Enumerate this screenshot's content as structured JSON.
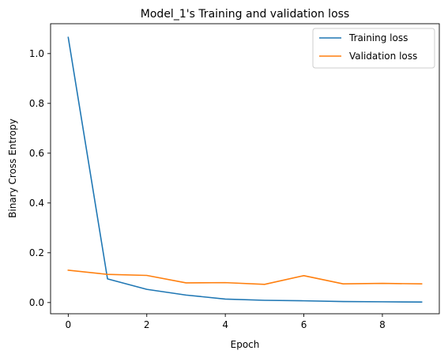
{
  "chart_data": {
    "type": "line",
    "title": "Model_1's Training and validation loss",
    "xlabel": "Epoch",
    "ylabel": "Binary Cross Entropy",
    "x": [
      0,
      1,
      2,
      3,
      4,
      5,
      6,
      7,
      8,
      9
    ],
    "xlim": [
      -0.45,
      9.45
    ],
    "ylim": [
      -0.045,
      1.12
    ],
    "xticks": [
      0,
      2,
      4,
      6,
      8
    ],
    "yticks": [
      0.0,
      0.2,
      0.4,
      0.6,
      0.8,
      1.0
    ],
    "xtick_labels": [
      "0",
      "2",
      "4",
      "6",
      "8"
    ],
    "ytick_labels": [
      "0.0",
      "0.2",
      "0.4",
      "0.6",
      "0.8",
      "1.0"
    ],
    "grid": false,
    "legend_position": "top-right",
    "series": [
      {
        "name": "Training loss",
        "color": "#1f77b4",
        "values": [
          1.065,
          0.095,
          0.053,
          0.03,
          0.014,
          0.009,
          0.007,
          0.004,
          0.003,
          0.002
        ]
      },
      {
        "name": "Validation loss",
        "color": "#ff7f0e",
        "values": [
          0.13,
          0.113,
          0.109,
          0.079,
          0.08,
          0.073,
          0.108,
          0.075,
          0.077,
          0.075
        ]
      }
    ]
  }
}
